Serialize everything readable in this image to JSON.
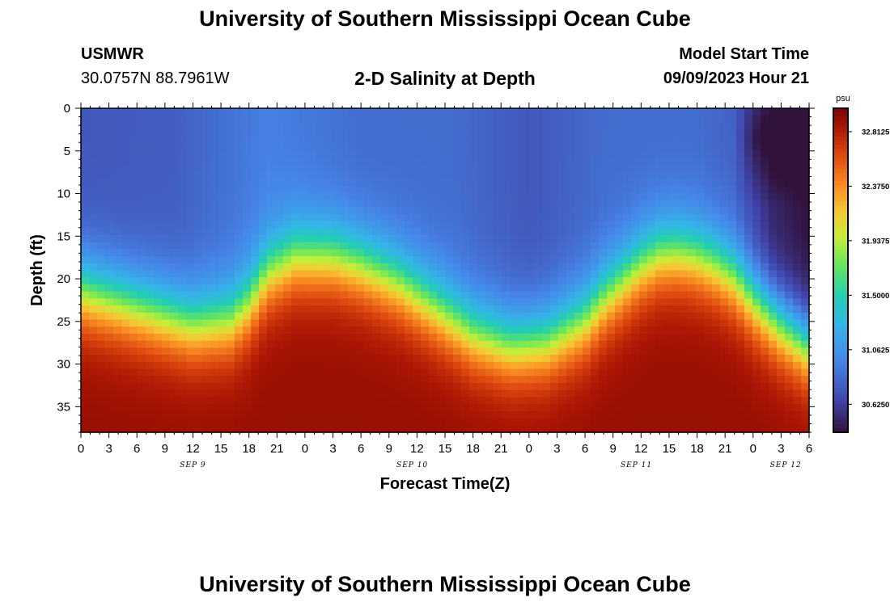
{
  "page": {
    "title": "University of Southern Mississippi Ocean Cube",
    "station": "USMWR",
    "coordinates": "30.0757N  88.7961W",
    "subtitle": "2-D Salinity at Depth",
    "model_start_label": "Model Start Time",
    "model_start_time": "09/09/2023 Hour 21",
    "repeated_title": "University of Southern Mississippi Ocean Cube"
  },
  "chart_data": {
    "type": "heatmap",
    "xlabel": "Forecast Time(Z)",
    "ylabel": "Depth (ft)",
    "x_range_hours": [
      0,
      78
    ],
    "y_range_ft": [
      0,
      38
    ],
    "y_inverted": true,
    "x_ticks": [
      "0",
      "3",
      "6",
      "9",
      "12",
      "15",
      "18",
      "21",
      "0",
      "3",
      "6",
      "9",
      "12",
      "15",
      "18",
      "21",
      "0",
      "3",
      "6",
      "9",
      "12",
      "15",
      "18",
      "21",
      "0",
      "3",
      "6"
    ],
    "date_labels": [
      {
        "label": "SEP 9",
        "hour": 12
      },
      {
        "label": "SEP 10",
        "hour": 35.5
      },
      {
        "label": "SEP 11",
        "hour": 59.5
      },
      {
        "label": "SEP 12",
        "hour": 75.5
      }
    ],
    "y_ticks": [
      0,
      5,
      10,
      15,
      20,
      25,
      30,
      35
    ],
    "colorbar": {
      "unit": "psu",
      "range": [
        30.4,
        33.0
      ],
      "labels": [
        "32.8125",
        "32.3750",
        "31.9375",
        "31.5000",
        "31.0625",
        "30.6250"
      ],
      "label_values": [
        32.8125,
        32.375,
        31.9375,
        31.5,
        31.0625,
        30.625
      ]
    },
    "halocline_depth_ft": {
      "hours": [
        0,
        6,
        12,
        16,
        18,
        20,
        23,
        27,
        30,
        34,
        38,
        42,
        46,
        50,
        54,
        56,
        58,
        60,
        62,
        64,
        66,
        68,
        70,
        72,
        75,
        78
      ],
      "depth": [
        21.5,
        23.5,
        25.5,
        25,
        23,
        19.5,
        17.5,
        17.5,
        18.5,
        20.5,
        23.5,
        26.5,
        28,
        27.5,
        25,
        22.5,
        20.5,
        18.5,
        17.2,
        17,
        17.5,
        18.5,
        20,
        22.5,
        25.5,
        28
      ]
    },
    "surface_salinity_psu": {
      "hours": [
        0,
        10,
        20,
        30,
        40,
        48,
        56,
        62,
        66,
        70,
        74,
        78
      ],
      "values": [
        30.75,
        30.78,
        30.95,
        30.85,
        30.85,
        30.75,
        30.85,
        30.85,
        30.85,
        30.8,
        30.5,
        30.4
      ]
    },
    "bottom_salinity_psu": 32.9
  }
}
